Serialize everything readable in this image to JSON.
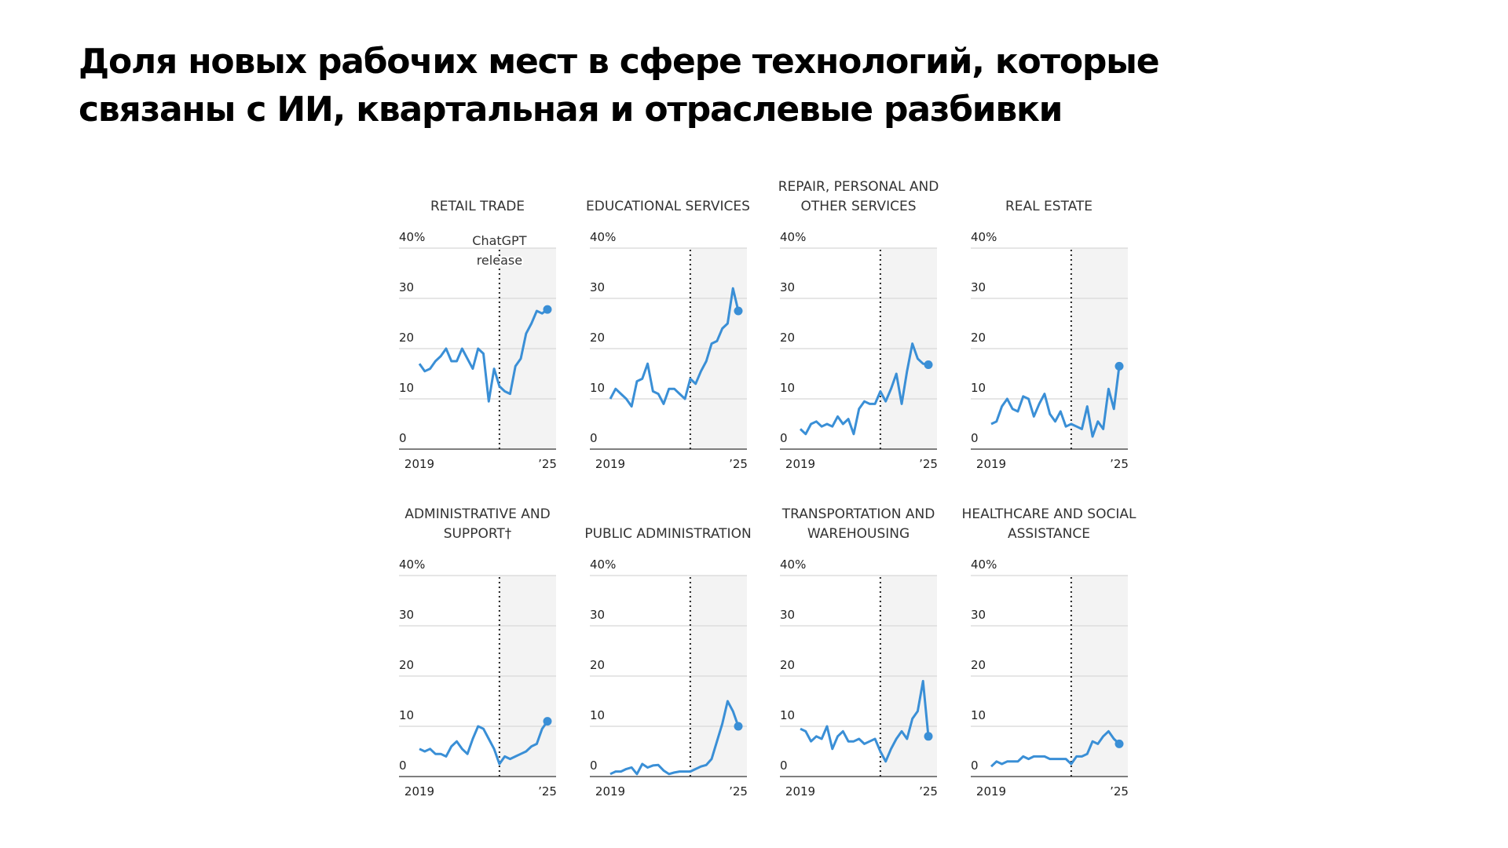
{
  "title": "Доля новых рабочих мест в сфере технологий, которые связаны с ИИ, квартальная и отраслевые разбивки",
  "chart_data": {
    "type": "line",
    "layout": "small multiples, 2 rows x 4 columns",
    "x_start": "2019 Q1",
    "x_end": "2025 Q1",
    "x_frequency": "quarterly",
    "x_tick_labels": [
      "2019",
      "’25"
    ],
    "y_tick_labels": [
      "0",
      "10",
      "20",
      "30",
      "40%"
    ],
    "ylim": [
      0,
      40
    ],
    "grid": true,
    "annotation": {
      "label": "ChatGPT release",
      "x": "2022 Q4",
      "line1": "ChatGPT",
      "line2": "release"
    },
    "shaded_region": "2022 Q4 – 2025 Q1",
    "colors": {
      "line": "#3a8fd6",
      "shade": "#f3f3f3",
      "grid": "#dddddd"
    },
    "panels": [
      {
        "title": "RETAIL TRADE",
        "values": [
          17,
          15.5,
          16,
          17.5,
          18.5,
          20,
          17.5,
          17.5,
          20,
          18,
          16,
          20,
          19,
          9.5,
          16,
          12.5,
          11.5,
          11,
          16.5,
          18,
          23,
          25,
          27.5,
          27,
          27.8
        ]
      },
      {
        "title": "EDUCATIONAL SERVICES",
        "values": [
          10,
          12,
          11,
          10,
          8.5,
          13.5,
          14,
          17,
          11.5,
          11,
          9,
          12,
          12,
          11,
          10,
          14,
          13,
          15.5,
          17.5,
          21,
          21.5,
          24,
          25,
          32,
          27.5
        ]
      },
      {
        "title": "REPAIR, PERSONAL AND OTHER SERVICES",
        "values": [
          4,
          3,
          5,
          5.5,
          4.5,
          5,
          4.5,
          6.5,
          5,
          6,
          3,
          8,
          9.5,
          9,
          9,
          11.5,
          9.5,
          12,
          15,
          9,
          15.5,
          21,
          18,
          17,
          16.8
        ]
      },
      {
        "title": "REAL ESTATE",
        "values": [
          5,
          5.5,
          8.5,
          10,
          8,
          7.5,
          10.5,
          10,
          6.5,
          9,
          11,
          7,
          5.5,
          7.5,
          4.5,
          5,
          4.5,
          4,
          8.5,
          2.5,
          5.5,
          4,
          12,
          8,
          16.5
        ]
      },
      {
        "title": "ADMINISTRATIVE AND SUPPORT†",
        "values": [
          5.5,
          5,
          5.5,
          4.5,
          4.5,
          4,
          6,
          7,
          5.5,
          4.5,
          7.5,
          10,
          9.5,
          7.5,
          5.5,
          2.5,
          4,
          3.5,
          4,
          4.5,
          5,
          6,
          6.5,
          9.5,
          11
        ]
      },
      {
        "title": "PUBLIC ADMINISTRATION",
        "values": [
          0.5,
          1,
          1,
          1.5,
          1.8,
          0.5,
          2.5,
          1.8,
          2.2,
          2.3,
          1.2,
          0.5,
          0.8,
          1,
          1,
          1,
          1.5,
          2,
          2.3,
          3.5,
          7,
          10.5,
          15,
          13,
          10
        ]
      },
      {
        "title": "TRANSPORTATION AND WAREHOUSING",
        "values": [
          9.5,
          9,
          7,
          8,
          7.5,
          10,
          5.5,
          8,
          9,
          7,
          7,
          7.5,
          6.5,
          7,
          7.5,
          5,
          3,
          5.5,
          7.5,
          9,
          7.5,
          11.5,
          13,
          19,
          8
        ]
      },
      {
        "title": "HEALTHCARE AND SOCIAL ASSISTANCE",
        "values": [
          2,
          3,
          2.5,
          3,
          3,
          3,
          4,
          3.5,
          4,
          4,
          4,
          3.5,
          3.5,
          3.5,
          3.5,
          2.5,
          4,
          4,
          4.5,
          7,
          6.5,
          8,
          9,
          7.5,
          6.5
        ]
      }
    ]
  }
}
